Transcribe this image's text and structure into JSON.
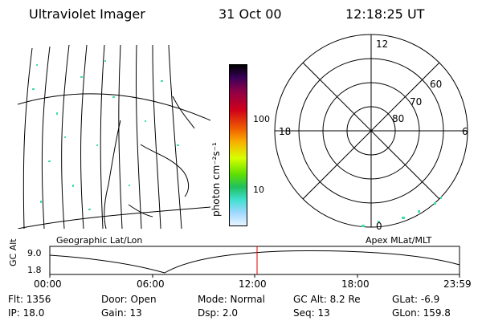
{
  "header": {
    "instrument": "Ultraviolet Imager",
    "date": "31 Oct 00",
    "time": "12:18:25 UT"
  },
  "colorbar": {
    "label": "photon cm⁻²s⁻¹",
    "tick_100": "100",
    "tick_10": "10"
  },
  "polar": {
    "mlt_top": "12",
    "mlt_left": "18",
    "mlt_right": "6",
    "mlt_bottom": "0",
    "lat_60": "60",
    "lat_70": "70",
    "lat_80": "80"
  },
  "timeline": {
    "left_label": "Geographic Lat/Lon",
    "right_label": "Apex MLat/MLT",
    "ylabel": "GC Alt",
    "y_top": "9.0",
    "y_bottom": "1.8",
    "ticks": [
      "00:00",
      "06:00",
      "12:00",
      "18:00",
      "23:59"
    ]
  },
  "status": {
    "flt": "Flt: 1356",
    "ip": "IP: 18.0",
    "door": "Door: Open",
    "gain": "Gain: 13",
    "mode": "Mode: Normal",
    "dsp": "Dsp:     2.0",
    "gc_alt": "GC Alt: 8.2 Re",
    "seq": "Seq: 13",
    "glat": "GLat:   -6.9",
    "glon": "GLon: 159.8"
  }
}
